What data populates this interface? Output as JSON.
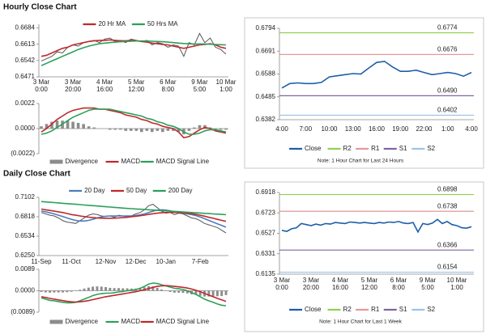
{
  "sections": [
    "Hourly Close Chart",
    "Daily Close Chart"
  ],
  "chart_data": [
    {
      "type": "line",
      "legend": "top",
      "categories": [
        [
          "3 Mar",
          "0:00"
        ],
        null,
        null,
        null,
        null,
        null,
        [
          "3 Mar",
          "20:00"
        ],
        null,
        null,
        null,
        null,
        null,
        [
          "4 Mar",
          "16:00"
        ],
        null,
        null,
        null,
        null,
        null,
        [
          "5 Mar",
          "12:00"
        ],
        null,
        null,
        null,
        null,
        null,
        [
          "6 Mar",
          "8:00"
        ],
        null,
        null,
        null,
        null,
        null,
        [
          "9 Mar",
          "5:00"
        ],
        null,
        null,
        null,
        null,
        [
          "10 Mar",
          "1:00"
        ]
      ],
      "ylim": [
        0.6471,
        0.67
      ],
      "yticks": [
        0.6471,
        0.6542,
        0.6613,
        0.6684
      ],
      "series": [
        {
          "color": "#555555",
          "values": [
            0.654,
            0.655,
            0.656,
            0.658,
            0.6575,
            0.66,
            0.661,
            0.6605,
            0.662,
            0.6625,
            0.663,
            0.662,
            0.6635,
            0.664,
            0.6625,
            0.663,
            0.662,
            0.6635,
            0.663,
            0.6625,
            0.663,
            0.661,
            0.662,
            0.6615,
            0.66,
            0.661,
            0.6605,
            0.656,
            0.662,
            0.661,
            0.666,
            0.662,
            0.664,
            0.66,
            0.659,
            0.657
          ]
        },
        {
          "name": "20 Hr MA",
          "color": "#c0282d",
          "values": [
            0.656,
            0.6565,
            0.6575,
            0.6585,
            0.6595,
            0.66,
            0.661,
            0.6615,
            0.662,
            0.6625,
            0.6628,
            0.663,
            0.663,
            0.6632,
            0.663,
            0.6628,
            0.6628,
            0.663,
            0.6628,
            0.6625,
            0.6622,
            0.6618,
            0.6615,
            0.6612,
            0.661,
            0.6605,
            0.66,
            0.6595,
            0.66,
            0.6605,
            0.661,
            0.6612,
            0.6615,
            0.661,
            0.66,
            0.6595
          ]
        },
        {
          "name": "50 Hrs MA",
          "color": "#2ca05a",
          "values": [
            0.652,
            0.653,
            0.654,
            0.655,
            0.656,
            0.657,
            0.658,
            0.659,
            0.6598,
            0.6605,
            0.661,
            0.6615,
            0.6618,
            0.662,
            0.6622,
            0.6624,
            0.6625,
            0.6626,
            0.6627,
            0.6627,
            0.6627,
            0.6626,
            0.6625,
            0.6624,
            0.6622,
            0.662,
            0.6618,
            0.6616,
            0.6615,
            0.6614,
            0.6614,
            0.6614,
            0.6613,
            0.6612,
            0.6611,
            0.661
          ]
        }
      ]
    },
    {
      "type": "combo",
      "legend": "bottom",
      "ylim": [
        -0.0022,
        0.0022
      ],
      "yticks": [
        0.0022,
        {
          "value": 0,
          "label": "0.0000"
        },
        {
          "value": -0.0022,
          "label": "(0.0022)"
        }
      ],
      "series": [
        {
          "name": "Divergence",
          "type": "bar",
          "color": "#8c8c8c",
          "values": [
            0.0002,
            0.0004,
            0.0006,
            0.0007,
            0.0007,
            0.0007,
            0.0006,
            0.0005,
            0.0004,
            0.0002,
            0.0001,
            0,
            0,
            -0.0001,
            -0.0001,
            -0.0001,
            -0.0002,
            -0.0002,
            -0.0002,
            -0.0003,
            -0.0002,
            -0.0003,
            -0.0002,
            -0.0003,
            -0.0002,
            -0.0002,
            -0.0003,
            -0.0005,
            -0.0002,
            0.0001,
            0.0003,
            0.0003,
            0.0001,
            -0.0001,
            -0.0001,
            -0.0001
          ]
        },
        {
          "name": "MACD",
          "color": "#c0282d",
          "values": [
            -0.0003,
            0,
            0.0004,
            0.0008,
            0.0011,
            0.0014,
            0.0016,
            0.0017,
            0.0018,
            0.0018,
            0.0018,
            0.0017,
            0.0017,
            0.0016,
            0.0015,
            0.0014,
            0.0012,
            0.0011,
            0.001,
            0.0008,
            0.0007,
            0.0005,
            0.0004,
            0.0002,
            0.0001,
            0,
            -0.0003,
            -0.0008,
            -0.0007,
            -0.0004,
            -0.0001,
            0.0001,
            0,
            -0.0002,
            -0.0003,
            -0.0004
          ]
        },
        {
          "name": "MACD Signal Line",
          "color": "#2ca05a",
          "values": [
            -0.0005,
            -0.0004,
            -0.0002,
            0.0001,
            0.0004,
            0.0007,
            0.001,
            0.0012,
            0.0014,
            0.0016,
            0.0017,
            0.0017,
            0.0017,
            0.0017,
            0.0016,
            0.0015,
            0.0014,
            0.0013,
            0.0012,
            0.0011,
            0.0009,
            0.0008,
            0.0006,
            0.0005,
            0.0003,
            0.0002,
            0,
            -0.0003,
            -0.0005,
            -0.0005,
            -0.0004,
            -0.0002,
            -0.0001,
            -0.0001,
            -0.0002,
            -0.0003
          ]
        }
      ]
    },
    {
      "type": "line",
      "legend": "bottom",
      "note": "Note: 1 Hour Chart for Last 24 Hours",
      "categories": [
        "4:00",
        null,
        null,
        "7:00",
        null,
        null,
        "10:00",
        null,
        null,
        "13:00",
        null,
        null,
        "16:00",
        null,
        null,
        "19:00",
        null,
        null,
        "22:00",
        null,
        null,
        "1:00",
        null,
        null,
        "4:00"
      ],
      "ylim": [
        0.6382,
        0.6794
      ],
      "yticks": [
        0.6382,
        0.6485,
        0.6588,
        0.6691,
        0.6794
      ],
      "series": [
        {
          "name": "Close",
          "color": "#1f5fa8",
          "values": [
            0.6525,
            0.6545,
            0.6548,
            0.6545,
            0.6545,
            0.655,
            0.6575,
            0.658,
            0.6585,
            0.659,
            0.6588,
            0.6615,
            0.664,
            0.6645,
            0.662,
            0.66,
            0.66,
            0.6605,
            0.6595,
            0.6585,
            0.659,
            0.6595,
            0.659,
            0.6578,
            0.6595
          ]
        },
        {
          "name": "R2",
          "color": "#92d050",
          "value": 0.6774
        },
        {
          "name": "R1",
          "color": "#e39a9a",
          "value": 0.6676
        },
        {
          "name": "S1",
          "color": "#8064a2",
          "value": 0.649,
          "value_label": "0.6490"
        },
        {
          "name": "S2",
          "color": "#9dc3e6",
          "value": 0.6402
        }
      ]
    },
    {
      "type": "line",
      "legend": "top",
      "categories": [
        "11-Sep",
        null,
        null,
        null,
        null,
        null,
        null,
        "11-Oct",
        null,
        null,
        null,
        null,
        null,
        null,
        null,
        "12-Nov",
        null,
        null,
        null,
        null,
        null,
        null,
        "12-Dec",
        null,
        null,
        null,
        null,
        null,
        null,
        "10-Jan",
        null,
        null,
        null,
        null,
        null,
        null,
        null,
        "7-Feb",
        null,
        null,
        null,
        null,
        null,
        null
      ],
      "ylim": [
        0.625,
        0.7102
      ],
      "yticks": [
        {
          "value": 0.625,
          "label": "0.6250"
        },
        0.6534,
        0.6818,
        0.7102
      ],
      "series": [
        {
          "color": "#555555",
          "values": [
            0.688,
            0.686,
            0.684,
            0.683,
            0.68,
            0.676,
            0.674,
            0.673,
            0.672,
            0.676,
            0.68,
            0.684,
            0.686,
            0.685,
            0.683,
            0.682,
            0.683,
            0.681,
            0.684,
            0.683,
            0.682,
            0.683,
            0.686,
            0.688,
            0.692,
            0.698,
            0.7,
            0.695,
            0.69,
            0.687,
            0.688,
            0.685,
            0.687,
            0.686,
            0.683,
            0.68,
            0.679,
            0.676,
            0.672,
            0.67,
            0.668,
            0.666,
            0.662,
            0.658
          ]
        },
        {
          "name": "20 Day",
          "color": "#4a7ebb",
          "values": [
            0.69,
            0.689,
            0.6875,
            0.686,
            0.684,
            0.682,
            0.68,
            0.678,
            0.6765,
            0.6755,
            0.6755,
            0.6765,
            0.678,
            0.68,
            0.6815,
            0.6825,
            0.683,
            0.683,
            0.683,
            0.683,
            0.683,
            0.683,
            0.6835,
            0.6845,
            0.686,
            0.688,
            0.69,
            0.6915,
            0.692,
            0.6915,
            0.6905,
            0.689,
            0.688,
            0.687,
            0.686,
            0.685,
            0.6835,
            0.6815,
            0.679,
            0.6765,
            0.674,
            0.6715,
            0.669,
            0.6665
          ]
        },
        {
          "name": "50 Day",
          "color": "#c0282d",
          "values": [
            0.693,
            0.692,
            0.691,
            0.69,
            0.689,
            0.688,
            0.6865,
            0.685,
            0.684,
            0.683,
            0.682,
            0.6812,
            0.6805,
            0.68,
            0.6797,
            0.6795,
            0.6795,
            0.6797,
            0.68,
            0.6805,
            0.681,
            0.6818,
            0.6825,
            0.6833,
            0.6842,
            0.6852,
            0.6862,
            0.687,
            0.6876,
            0.688,
            0.6882,
            0.6882,
            0.688,
            0.6876,
            0.687,
            0.6862,
            0.6852,
            0.684,
            0.6826,
            0.681,
            0.6795,
            0.678,
            0.6765,
            0.675
          ]
        },
        {
          "name": "200 Day",
          "color": "#2ca05a",
          "values": [
            0.704,
            0.7035,
            0.703,
            0.7025,
            0.702,
            0.7015,
            0.701,
            0.7005,
            0.7,
            0.6995,
            0.699,
            0.6985,
            0.698,
            0.6975,
            0.697,
            0.6965,
            0.696,
            0.6955,
            0.695,
            0.6945,
            0.694,
            0.6936,
            0.6932,
            0.6928,
            0.6924,
            0.692,
            0.6916,
            0.6912,
            0.6908,
            0.6904,
            0.69,
            0.6896,
            0.6892,
            0.6888,
            0.6884,
            0.688,
            0.6876,
            0.6872,
            0.6868,
            0.6864,
            0.686,
            0.6856,
            0.6852,
            0.6848
          ]
        }
      ]
    },
    {
      "type": "combo",
      "legend": "bottom",
      "ylim": [
        -0.0089,
        0.0089
      ],
      "yticks": [
        0.0089,
        {
          "value": 0,
          "label": "0.0000"
        },
        {
          "value": -0.0089,
          "label": "(0.0089)"
        }
      ],
      "series": [
        {
          "name": "Divergence",
          "type": "bar",
          "color": "#8c8c8c",
          "values": [
            -0.0005,
            -0.0007,
            -0.0008,
            -0.0007,
            -0.0007,
            -0.0007,
            -0.0006,
            -0.0004,
            -0.0001,
            0.0004,
            0.0009,
            0.0013,
            0.0017,
            0.0018,
            0.0017,
            0.0015,
            0.0012,
            0.0011,
            0.0011,
            0.001,
            0.001,
            0.0009,
            0.0009,
            0.001,
            0.0014,
            0.0019,
            0.0018,
            0.0012,
            0.0005,
            -0.0001,
            -0.0005,
            -0.0008,
            -0.0008,
            -0.0009,
            -0.0011,
            -0.0015,
            -0.0017,
            -0.0021,
            -0.0024,
            -0.0024,
            -0.0023,
            -0.0023,
            -0.0022,
            -0.0018
          ]
        },
        {
          "name": "MACD",
          "color": "#2ca05a",
          "values": [
            -0.003,
            -0.0035,
            -0.004,
            -0.0042,
            -0.0045,
            -0.0048,
            -0.005,
            -0.005,
            -0.0048,
            -0.0042,
            -0.0035,
            -0.0028,
            -0.002,
            -0.0015,
            -0.0012,
            -0.001,
            -0.001,
            -0.0008,
            -0.0005,
            -0.0003,
            0,
            0.0002,
            0.0005,
            0.001,
            0.0018,
            0.0028,
            0.0032,
            0.003,
            0.0025,
            0.002,
            0.0015,
            0.001,
            0.0008,
            0.0005,
            0,
            -0.0008,
            -0.0015,
            -0.0025,
            -0.0035,
            -0.0042,
            -0.0048,
            -0.0055,
            -0.006,
            -0.0062
          ]
        },
        {
          "name": "MACD Signal Line",
          "color": "#c0282d",
          "values": [
            -0.0025,
            -0.0028,
            -0.0032,
            -0.0035,
            -0.0038,
            -0.0041,
            -0.0044,
            -0.0046,
            -0.0047,
            -0.0046,
            -0.0044,
            -0.0041,
            -0.0037,
            -0.0033,
            -0.0029,
            -0.0025,
            -0.0022,
            -0.0019,
            -0.0016,
            -0.0013,
            -0.001,
            -0.0007,
            -0.0004,
            0,
            0.0004,
            0.0009,
            0.0014,
            0.0018,
            0.002,
            0.0021,
            0.002,
            0.0018,
            0.0016,
            0.0014,
            0.0011,
            0.0007,
            0.0002,
            -0.0004,
            -0.0011,
            -0.0018,
            -0.0025,
            -0.0032,
            -0.0038,
            -0.0044
          ]
        }
      ]
    },
    {
      "type": "line",
      "legend": "bottom",
      "note": "Note: 1 Hour Chart for Last 1 Week",
      "categories": [
        [
          "3 Mar",
          "0:00"
        ],
        null,
        null,
        null,
        null,
        null,
        [
          "3 Mar",
          "20:00"
        ],
        null,
        null,
        null,
        null,
        null,
        [
          "4 Mar",
          "16:00"
        ],
        null,
        null,
        null,
        null,
        null,
        [
          "5 Mar",
          "12:00"
        ],
        null,
        null,
        null,
        null,
        null,
        [
          "6 Mar",
          "8:00"
        ],
        null,
        null,
        null,
        null,
        null,
        [
          "9 Mar",
          "5:00"
        ],
        null,
        null,
        null,
        null,
        null,
        [
          "10 Mar",
          "1:00"
        ],
        null,
        null,
        null
      ],
      "ylim": [
        0.6135,
        0.6918
      ],
      "yticks": [
        0.6135,
        0.6331,
        0.6527,
        0.6723,
        0.6918
      ],
      "series": [
        {
          "name": "Close",
          "color": "#1f5fa8",
          "values": [
            0.6555,
            0.6545,
            0.657,
            0.658,
            0.662,
            0.661,
            0.66,
            0.6615,
            0.6605,
            0.662,
            0.6615,
            0.663,
            0.6625,
            0.662,
            0.6635,
            0.663,
            0.6625,
            0.663,
            0.6625,
            0.662,
            0.663,
            0.6625,
            0.6635,
            0.663,
            0.664,
            0.6625,
            0.662,
            0.663,
            0.654,
            0.662,
            0.661,
            0.6625,
            0.666,
            0.662,
            0.664,
            0.661,
            0.66,
            0.658,
            0.6575,
            0.659
          ]
        },
        {
          "name": "R2",
          "color": "#92d050",
          "value": 0.6898
        },
        {
          "name": "R1",
          "color": "#e39a9a",
          "value": 0.6738
        },
        {
          "name": "S1",
          "color": "#8064a2",
          "value": 0.6366
        },
        {
          "name": "S2",
          "color": "#9dc3e6",
          "value": 0.6154
        }
      ]
    }
  ]
}
